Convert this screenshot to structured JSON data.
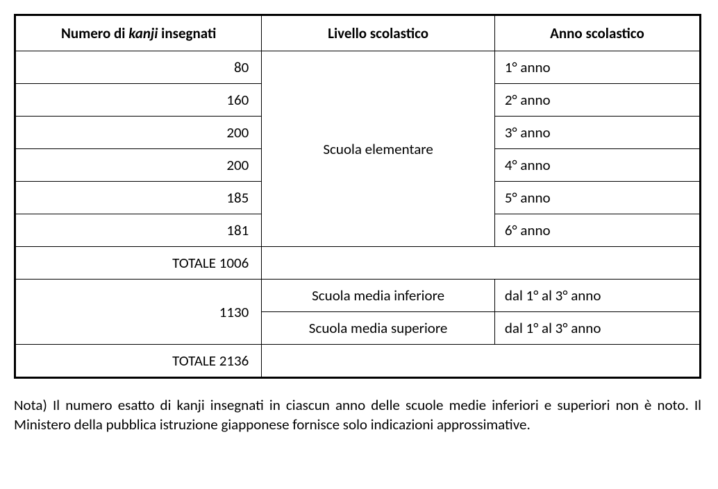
{
  "table": {
    "headers": {
      "col1_prefix": "Numero di ",
      "col1_italic": "kanji",
      "col1_suffix": " insegnati",
      "col2": "Livello scolastico",
      "col3": "Anno scolastico"
    },
    "elementary": {
      "level": "Scuola elementare",
      "rows": [
        {
          "kanji": "80",
          "year": "1° anno"
        },
        {
          "kanji": "160",
          "year": "2° anno"
        },
        {
          "kanji": "200",
          "year": "3° anno"
        },
        {
          "kanji": "200",
          "year": "4° anno"
        },
        {
          "kanji": "185",
          "year": "5° anno"
        },
        {
          "kanji": "181",
          "year": "6° anno"
        }
      ],
      "total": "TOTALE 1006"
    },
    "middle": {
      "kanji": "1130",
      "rows": [
        {
          "level": "Scuola media inferiore",
          "year": "dal 1° al 3° anno"
        },
        {
          "level": "Scuola media superiore",
          "year": "dal 1° al 3° anno"
        }
      ]
    },
    "grand_total": "TOTALE 2136"
  },
  "note": "Nota) Il numero esatto di kanji insegnati in ciascun anno delle scuole medie inferiori e superiori non è noto. Il Ministero della pubblica istruzione giapponese fornisce solo indicazioni approssimative."
}
